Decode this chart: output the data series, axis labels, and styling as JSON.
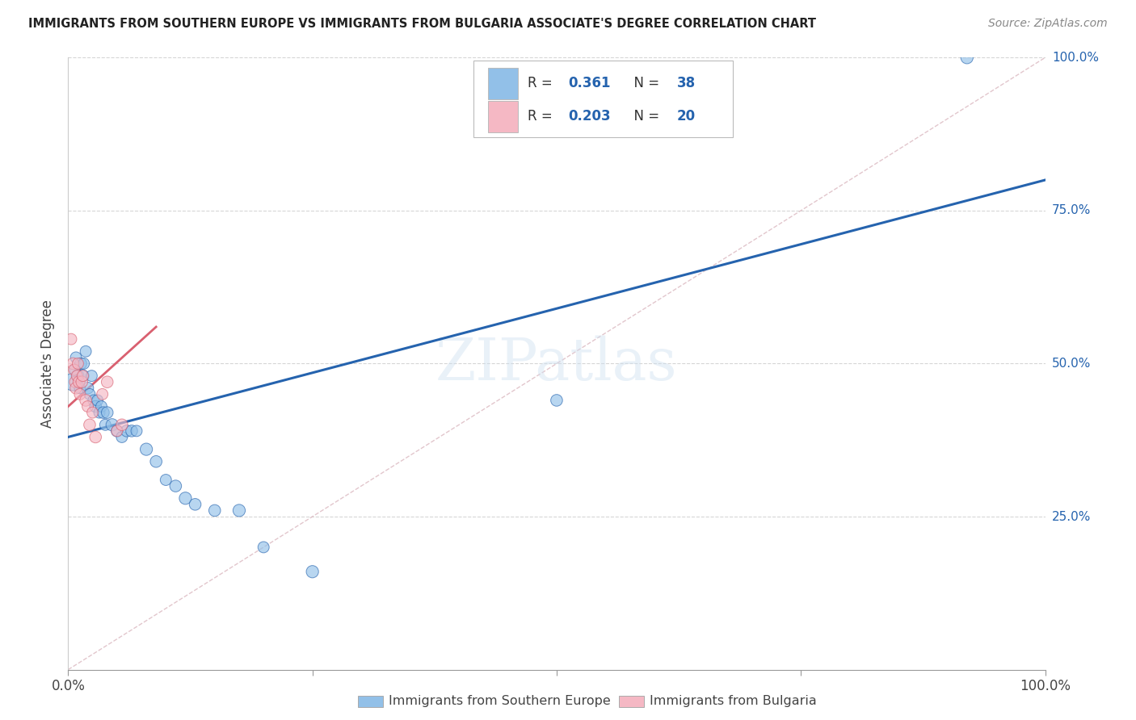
{
  "title": "IMMIGRANTS FROM SOUTHERN EUROPE VS IMMIGRANTS FROM BULGARIA ASSOCIATE'S DEGREE CORRELATION CHART",
  "source": "Source: ZipAtlas.com",
  "ylabel": "Associate's Degree",
  "watermark": "ZIPatlas",
  "blue_color": "#92c0e8",
  "pink_color": "#f5b8c4",
  "line_blue": "#2563ae",
  "line_pink": "#d96070",
  "line_diag_color": "#dbb8c0",
  "blue_scatter_x": [
    0.005,
    0.007,
    0.008,
    0.01,
    0.012,
    0.013,
    0.015,
    0.016,
    0.018,
    0.02,
    0.022,
    0.024,
    0.026,
    0.028,
    0.03,
    0.032,
    0.034,
    0.036,
    0.038,
    0.04,
    0.045,
    0.05,
    0.055,
    0.06,
    0.065,
    0.07,
    0.08,
    0.09,
    0.1,
    0.11,
    0.12,
    0.13,
    0.15,
    0.175,
    0.2,
    0.25,
    0.5,
    0.92
  ],
  "blue_scatter_y": [
    0.47,
    0.49,
    0.51,
    0.48,
    0.46,
    0.5,
    0.48,
    0.5,
    0.52,
    0.46,
    0.45,
    0.48,
    0.44,
    0.43,
    0.44,
    0.42,
    0.43,
    0.42,
    0.4,
    0.42,
    0.4,
    0.39,
    0.38,
    0.39,
    0.39,
    0.39,
    0.36,
    0.34,
    0.31,
    0.3,
    0.28,
    0.27,
    0.26,
    0.26,
    0.2,
    0.16,
    0.44,
    1.0
  ],
  "blue_scatter_sizes": [
    250,
    100,
    100,
    120,
    100,
    110,
    120,
    100,
    100,
    110,
    100,
    100,
    100,
    110,
    100,
    100,
    100,
    110,
    100,
    110,
    120,
    110,
    100,
    110,
    110,
    100,
    120,
    110,
    100,
    110,
    120,
    110,
    110,
    120,
    100,
    120,
    110,
    120
  ],
  "pink_scatter_x": [
    0.003,
    0.005,
    0.006,
    0.007,
    0.008,
    0.009,
    0.01,
    0.011,
    0.012,
    0.014,
    0.015,
    0.018,
    0.02,
    0.022,
    0.025,
    0.028,
    0.035,
    0.04,
    0.05,
    0.055
  ],
  "pink_scatter_y": [
    0.54,
    0.5,
    0.49,
    0.47,
    0.46,
    0.48,
    0.5,
    0.47,
    0.45,
    0.47,
    0.48,
    0.44,
    0.43,
    0.4,
    0.42,
    0.38,
    0.45,
    0.47,
    0.39,
    0.4
  ],
  "pink_scatter_sizes": [
    100,
    110,
    100,
    100,
    110,
    100,
    100,
    110,
    100,
    110,
    100,
    110,
    100,
    110,
    100,
    110,
    100,
    110,
    100,
    110
  ],
  "blue_line_x": [
    0.0,
    1.0
  ],
  "blue_line_y": [
    0.38,
    0.8
  ],
  "pink_line_x": [
    0.0,
    0.09
  ],
  "pink_line_y": [
    0.43,
    0.56
  ],
  "diag_line_x": [
    0.0,
    1.0
  ],
  "diag_line_y": [
    0.0,
    1.0
  ],
  "xlim": [
    0,
    1.0
  ],
  "ylim": [
    0,
    1.0
  ],
  "xticks": [
    0,
    0.25,
    0.5,
    0.75,
    1.0
  ],
  "xticklabels": [
    "0.0%",
    "",
    "",
    "",
    "100.0%"
  ],
  "ytick_vals": [
    0.25,
    0.5,
    0.75,
    1.0
  ],
  "ytick_labels": [
    "25.0%",
    "50.0%",
    "75.0%",
    "100.0%"
  ],
  "legend_R1": "0.361",
  "legend_N1": "38",
  "legend_R2": "0.203",
  "legend_N2": "20",
  "bottom_label1": "Immigrants from Southern Europe",
  "bottom_label2": "Immigrants from Bulgaria"
}
